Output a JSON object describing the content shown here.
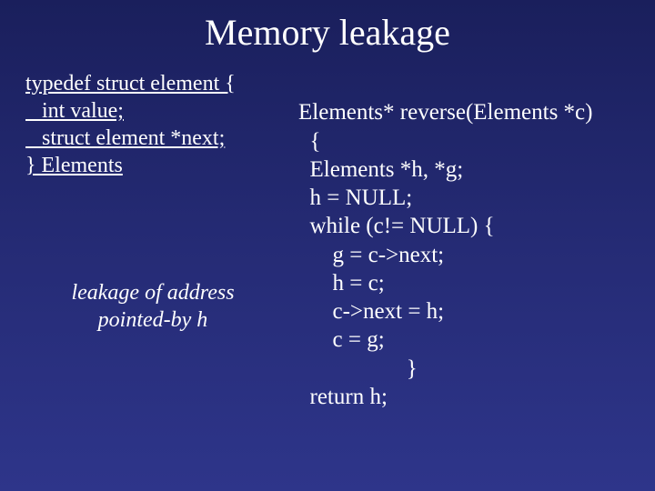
{
  "title": "Memory leakage",
  "struct": {
    "l1": "typedef struct element {",
    "l2": "   int value;",
    "l3": "   struct element *next;",
    "l4": "} Elements"
  },
  "note": {
    "l1": "leakage of address",
    "l2": "pointed-by h"
  },
  "code": {
    "l1": "Elements* reverse(Elements *c)",
    "l2": "  {",
    "l3": "  Elements *h, *g;",
    "l4": "  h = NULL;",
    "l5": "  while (c!= NULL) {",
    "l6": "      g = c->next;",
    "l7": "      h = c;",
    "l8": "      c->next = h;",
    "l9": "      c = g;",
    "l10": "                   }",
    "l11": "  return h;"
  },
  "colors": {
    "bg_top": "#1a1f5c",
    "bg_bottom": "#2e358a",
    "text": "#ffffff"
  },
  "typography": {
    "title_fontsize": 40,
    "body_fontsize": 24,
    "font_family": "Times New Roman"
  }
}
